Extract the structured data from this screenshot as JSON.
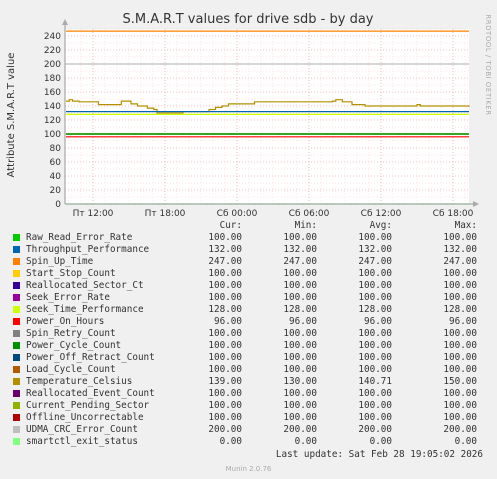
{
  "chart_data": {
    "type": "line",
    "title": "S.M.A.R.T values for drive sdb - by day",
    "ylabel": "Attribute S.M.A.R.T value",
    "side_label": "RRDTOOL / TOBI OETIKER",
    "ylim": [
      0,
      250
    ],
    "y_ticks": [
      0,
      20,
      40,
      60,
      80,
      100,
      120,
      140,
      160,
      180,
      200,
      220,
      240
    ],
    "x_tick_labels": [
      "Пт 12:00",
      "Пт 18:00",
      "Сб 00:00",
      "Сб 06:00",
      "Сб 12:00",
      "Сб 18:00"
    ],
    "grid": true,
    "columns": {
      "cur": "Cur:",
      "min": "Min:",
      "avg": "Avg:",
      "max": "Max:"
    },
    "series": [
      {
        "name": "Raw_Read_Error_Rate",
        "color": "#00cc00",
        "cur": "100.00",
        "min": "100.00",
        "avg": "100.00",
        "max": "100.00",
        "value": 100
      },
      {
        "name": "Throughput_Performance",
        "color": "#0066b3",
        "cur": "132.00",
        "min": "132.00",
        "avg": "132.00",
        "max": "132.00",
        "value": 132
      },
      {
        "name": "Spin_Up_Time",
        "color": "#ff8000",
        "cur": "247.00",
        "min": "247.00",
        "avg": "247.00",
        "max": "247.00",
        "value": 247
      },
      {
        "name": "Start_Stop_Count",
        "color": "#ffcc00",
        "cur": "100.00",
        "min": "100.00",
        "avg": "100.00",
        "max": "100.00",
        "value": 100
      },
      {
        "name": "Reallocated_Sector_Ct",
        "color": "#330099",
        "cur": "100.00",
        "min": "100.00",
        "avg": "100.00",
        "max": "100.00",
        "value": 100
      },
      {
        "name": "Seek_Error_Rate",
        "color": "#990099",
        "cur": "100.00",
        "min": "100.00",
        "avg": "100.00",
        "max": "100.00",
        "value": 100
      },
      {
        "name": "Seek_Time_Performance",
        "color": "#ccff00",
        "cur": "128.00",
        "min": "128.00",
        "avg": "128.00",
        "max": "128.00",
        "value": 128
      },
      {
        "name": "Power_On_Hours",
        "color": "#ff0000",
        "cur": "96.00",
        "min": "96.00",
        "avg": "96.00",
        "max": "96.00",
        "value": 96
      },
      {
        "name": "Spin_Retry_Count",
        "color": "#808080",
        "cur": "100.00",
        "min": "100.00",
        "avg": "100.00",
        "max": "100.00",
        "value": 100
      },
      {
        "name": "Power_Cycle_Count",
        "color": "#008f00",
        "cur": "100.00",
        "min": "100.00",
        "avg": "100.00",
        "max": "100.00",
        "value": 100
      },
      {
        "name": "Power_Off_Retract_Count",
        "color": "#00487d",
        "cur": "100.00",
        "min": "100.00",
        "avg": "100.00",
        "max": "100.00",
        "value": 100
      },
      {
        "name": "Load_Cycle_Count",
        "color": "#b35a00",
        "cur": "100.00",
        "min": "100.00",
        "avg": "100.00",
        "max": "100.00",
        "value": 100
      },
      {
        "name": "Temperature_Celsius",
        "color": "#b38f00",
        "cur": "139.00",
        "min": "130.00",
        "avg": "140.71",
        "max": "150.00",
        "values": [
          147,
          149,
          147,
          147,
          146,
          146,
          146,
          146,
          146,
          146,
          142,
          142,
          142,
          142,
          142,
          142,
          142,
          147,
          147,
          147,
          143,
          143,
          140,
          140,
          140,
          137,
          137,
          135,
          130,
          130,
          130,
          130,
          130,
          130,
          130,
          130,
          132,
          132,
          132,
          132,
          132,
          132,
          132,
          132,
          135,
          135,
          138,
          138,
          140,
          140,
          143,
          143,
          143,
          143,
          143,
          143,
          143,
          143,
          146,
          146,
          146,
          146,
          146,
          146,
          146,
          146,
          146,
          146,
          146,
          146,
          146,
          146,
          146,
          146,
          146,
          146,
          146,
          146,
          146,
          146,
          146,
          146,
          147,
          149,
          149,
          146,
          146,
          146,
          142,
          142,
          142,
          142,
          140,
          140,
          140,
          140,
          140,
          140,
          140,
          140,
          140,
          140,
          140,
          140,
          140,
          140,
          140,
          140,
          142,
          140,
          140,
          140,
          140,
          140,
          140,
          140,
          140,
          140,
          140,
          140,
          140,
          140,
          140,
          140,
          139
        ]
      },
      {
        "name": "Reallocated_Event_Count",
        "color": "#6b006b",
        "cur": "100.00",
        "min": "100.00",
        "avg": "100.00",
        "max": "100.00",
        "value": 100
      },
      {
        "name": "Current_Pending_Sector",
        "color": "#8fb300",
        "cur": "100.00",
        "min": "100.00",
        "avg": "100.00",
        "max": "100.00",
        "value": 100
      },
      {
        "name": "Offline_Uncorrectable",
        "color": "#b30000",
        "cur": "100.00",
        "min": "100.00",
        "avg": "100.00",
        "max": "100.00",
        "value": 100
      },
      {
        "name": "UDMA_CRC_Error_Count",
        "color": "#bebebe",
        "cur": "200.00",
        "min": "200.00",
        "avg": "200.00",
        "max": "200.00",
        "value": 200
      },
      {
        "name": "smartctl_exit_status",
        "color": "#80ff80",
        "cur": "0.00",
        "min": "0.00",
        "avg": "0.00",
        "max": "0.00",
        "value": 0
      }
    ]
  },
  "footer": {
    "last_update": "Last update: Sat Feb 28 19:05:02 2026",
    "munin": "Munin 2.0.76"
  }
}
